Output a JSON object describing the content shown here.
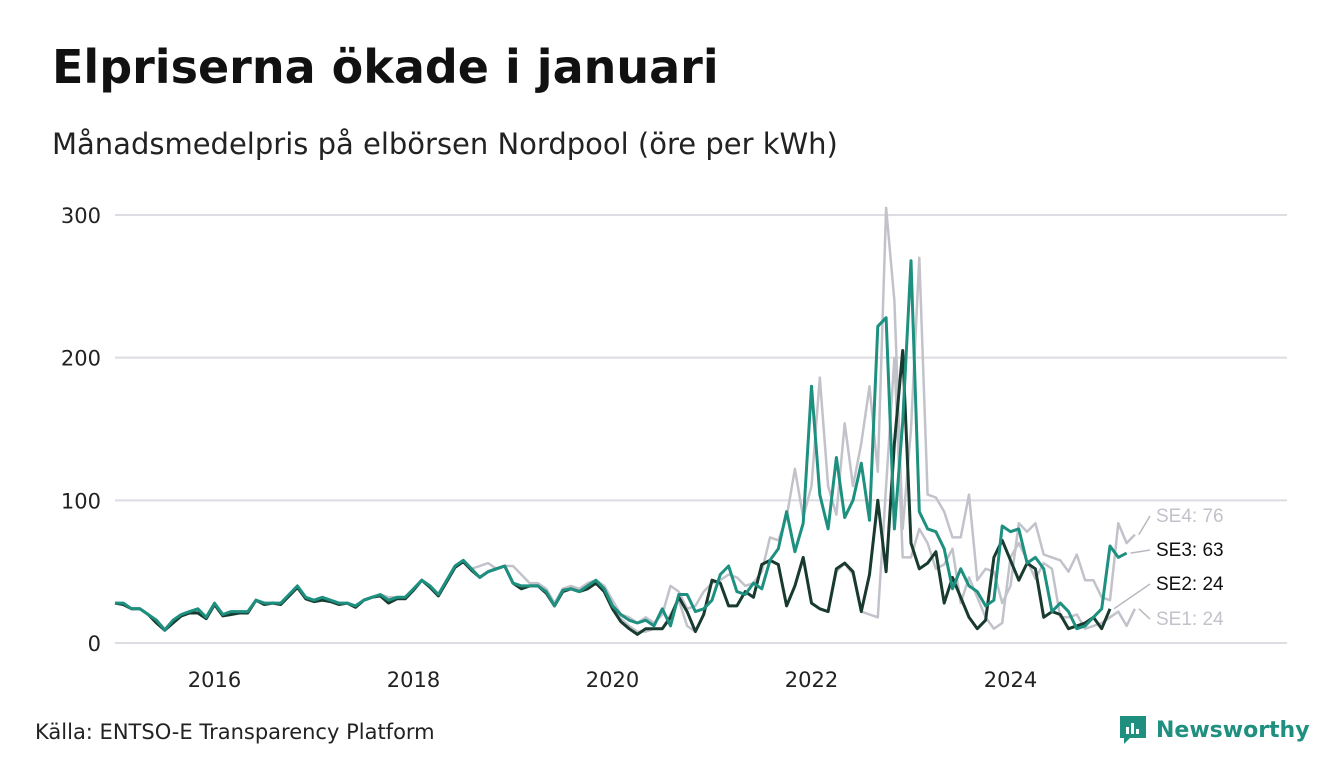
{
  "title": "Elpriserna ökade i januari",
  "subtitle": "Månadsmedelpris på elbörsen Nordpool (öre per kWh)",
  "source": "Källa: ENTSO-E Transparency Platform",
  "brand": {
    "name": "Newsworthy",
    "icon": "newsworthy-logo-icon",
    "color": "#1f8f80"
  },
  "chart_data": {
    "type": "line",
    "x_start": "2015-01",
    "x_ticks": [
      "2016",
      "2018",
      "2020",
      "2022",
      "2024"
    ],
    "y_ticks": [
      0,
      100,
      200,
      300
    ],
    "ylim": [
      0,
      300
    ],
    "grid": true,
    "series": [
      {
        "name": "SE4",
        "end_label": "SE4: 76",
        "color": "#c2c2cb",
        "values": [
          28,
          28,
          24,
          24,
          20,
          16,
          10,
          16,
          20,
          22,
          22,
          18,
          28,
          20,
          22,
          22,
          22,
          30,
          28,
          28,
          28,
          34,
          40,
          32,
          30,
          32,
          30,
          28,
          28,
          26,
          30,
          32,
          34,
          32,
          32,
          32,
          38,
          44,
          40,
          34,
          44,
          54,
          58,
          52,
          54,
          56,
          52,
          54,
          54,
          48,
          42,
          42,
          38,
          28,
          38,
          40,
          38,
          42,
          44,
          40,
          30,
          20,
          18,
          14,
          18,
          14,
          20,
          40,
          36,
          24,
          26,
          36,
          42,
          44,
          48,
          46,
          40,
          42,
          50,
          74,
          72,
          88,
          122,
          88,
          110,
          186,
          110,
          90,
          154,
          110,
          140,
          180,
          120,
          305,
          240,
          80,
          150,
          270,
          104,
          102,
          92,
          74,
          74,
          104,
          44,
          52,
          50,
          28,
          40,
          84,
          78,
          84,
          62,
          60,
          58,
          50,
          62,
          44,
          44,
          32,
          30,
          84,
          70,
          76
        ]
      },
      {
        "name": "SE1",
        "end_label": "SE1: 24",
        "color": "#c2c2cb",
        "values": [
          28,
          27,
          24,
          24,
          20,
          14,
          9,
          14,
          19,
          21,
          21,
          17,
          27,
          19,
          20,
          21,
          21,
          30,
          27,
          28,
          27,
          33,
          39,
          31,
          29,
          30,
          29,
          27,
          28,
          25,
          30,
          32,
          33,
          28,
          31,
          31,
          37,
          44,
          39,
          33,
          43,
          53,
          57,
          51,
          46,
          50,
          52,
          54,
          42,
          38,
          40,
          40,
          35,
          26,
          36,
          38,
          36,
          38,
          42,
          36,
          26,
          17,
          12,
          8,
          8,
          10,
          10,
          20,
          30,
          12,
          8,
          20,
          44,
          42,
          26,
          26,
          36,
          32,
          55,
          58,
          55,
          26,
          40,
          60,
          28,
          24,
          22,
          50,
          56,
          48,
          22,
          20,
          18,
          110,
          200,
          60,
          60,
          80,
          70,
          52,
          55,
          66,
          28,
          46,
          32,
          18,
          10,
          14,
          60,
          70,
          58,
          45,
          56,
          52,
          18,
          18,
          20,
          10,
          12,
          14,
          18,
          22,
          12,
          24
        ]
      },
      {
        "name": "SE2",
        "end_label": "SE2: 24",
        "color": "#183a2f",
        "values": [
          28,
          27,
          24,
          24,
          20,
          14,
          9,
          14,
          19,
          21,
          21,
          17,
          27,
          19,
          20,
          21,
          21,
          30,
          27,
          28,
          27,
          33,
          39,
          31,
          29,
          30,
          29,
          27,
          28,
          25,
          30,
          32,
          33,
          28,
          31,
          31,
          37,
          44,
          39,
          33,
          43,
          53,
          57,
          51,
          46,
          50,
          52,
          54,
          42,
          38,
          40,
          40,
          35,
          26,
          36,
          38,
          36,
          38,
          42,
          36,
          24,
          15,
          10,
          6,
          10,
          10,
          10,
          18,
          32,
          22,
          8,
          20,
          44,
          42,
          26,
          26,
          36,
          32,
          55,
          58,
          55,
          26,
          40,
          60,
          28,
          24,
          22,
          52,
          56,
          50,
          22,
          48,
          100,
          50,
          140,
          205,
          70,
          52,
          56,
          64,
          28,
          46,
          32,
          18,
          10,
          16,
          60,
          72,
          58,
          44,
          56,
          52,
          18,
          22,
          20,
          10,
          12,
          14,
          18,
          10,
          24
        ]
      },
      {
        "name": "SE3",
        "end_label": "SE3: 63",
        "color": "#1d9080",
        "values": [
          28,
          28,
          24,
          24,
          20,
          16,
          9,
          16,
          20,
          22,
          24,
          18,
          28,
          20,
          22,
          22,
          22,
          30,
          28,
          28,
          28,
          34,
          40,
          32,
          30,
          32,
          30,
          28,
          28,
          26,
          30,
          32,
          34,
          30,
          32,
          32,
          38,
          44,
          40,
          34,
          44,
          54,
          58,
          52,
          46,
          50,
          52,
          54,
          42,
          40,
          40,
          40,
          36,
          26,
          37,
          38,
          36,
          40,
          44,
          38,
          26,
          20,
          16,
          14,
          16,
          12,
          24,
          12,
          34,
          34,
          22,
          24,
          30,
          48,
          54,
          36,
          34,
          42,
          38,
          58,
          66,
          92,
          64,
          84,
          180,
          104,
          80,
          130,
          88,
          100,
          126,
          86,
          222,
          228,
          80,
          155,
          268,
          92,
          80,
          78,
          66,
          38,
          52,
          40,
          36,
          26,
          30,
          82,
          78,
          80,
          56,
          60,
          52,
          22,
          28,
          22,
          10,
          12,
          18,
          24,
          68,
          60,
          63
        ]
      }
    ]
  }
}
